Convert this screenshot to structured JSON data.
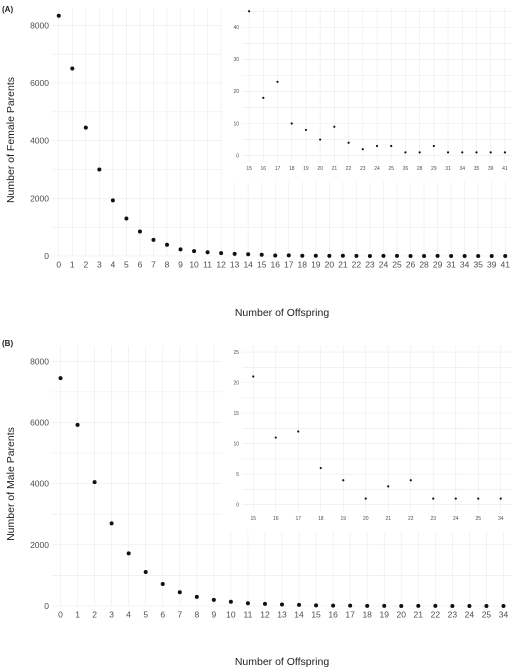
{
  "chart_data": [
    {
      "panel_label": "(A)",
      "type": "scatter",
      "xlabel": "Number of Offspring",
      "ylabel": "Number of Female Parents",
      "categories": [
        "0",
        "1",
        "2",
        "3",
        "4",
        "5",
        "6",
        "7",
        "8",
        "9",
        "10",
        "11",
        "12",
        "13",
        "14",
        "15",
        "16",
        "17",
        "18",
        "19",
        "20",
        "21",
        "22",
        "23",
        "24",
        "25",
        "26",
        "28",
        "29",
        "31",
        "34",
        "35",
        "39",
        "41"
      ],
      "values": [
        8330,
        6500,
        4450,
        3000,
        1930,
        1300,
        850,
        560,
        390,
        230,
        170,
        130,
        100,
        75,
        60,
        45,
        18,
        23,
        10,
        8,
        5,
        9,
        4,
        2,
        3,
        3,
        1,
        1,
        3,
        1,
        1,
        1,
        1,
        1
      ],
      "yticks": [
        0,
        2000,
        4000,
        6000,
        8000
      ],
      "ylim": [
        0,
        8600
      ],
      "grid": true,
      "inset": {
        "categories": [
          "15",
          "16",
          "17",
          "18",
          "19",
          "20",
          "21",
          "22",
          "23",
          "24",
          "25",
          "26",
          "28",
          "29",
          "31",
          "34",
          "35",
          "39",
          "41"
        ],
        "values": [
          45,
          18,
          23,
          10,
          8,
          5,
          9,
          4,
          2,
          3,
          3,
          1,
          1,
          3,
          1,
          1,
          1,
          1,
          1
        ],
        "yticks": [
          0,
          10,
          20,
          30,
          40
        ],
        "ylim": [
          -2,
          46
        ],
        "grid": true
      }
    },
    {
      "panel_label": "(B)",
      "type": "scatter",
      "xlabel": "Number of Offspring",
      "ylabel": "Number of Male Parents",
      "categories": [
        "0",
        "1",
        "2",
        "3",
        "4",
        "5",
        "6",
        "7",
        "8",
        "9",
        "10",
        "11",
        "12",
        "13",
        "14",
        "15",
        "16",
        "17",
        "18",
        "19",
        "20",
        "21",
        "22",
        "23",
        "24",
        "25",
        "34"
      ],
      "values": [
        7450,
        5920,
        4050,
        2700,
        1720,
        1110,
        720,
        450,
        300,
        200,
        140,
        90,
        70,
        50,
        35,
        21,
        11,
        12,
        6,
        4,
        1,
        3,
        4,
        1,
        1,
        1,
        1
      ],
      "yticks": [
        0,
        2000,
        4000,
        6000,
        8000
      ],
      "ylim": [
        0,
        8500
      ],
      "grid": true,
      "inset": {
        "categories": [
          "15",
          "16",
          "17",
          "18",
          "19",
          "20",
          "21",
          "22",
          "23",
          "24",
          "25",
          "34"
        ],
        "values": [
          21,
          11,
          12,
          6,
          4,
          1,
          3,
          4,
          1,
          1,
          1,
          1
        ],
        "yticks": [
          0,
          5,
          10,
          15,
          20,
          25
        ],
        "ylim": [
          -1.2,
          26
        ],
        "grid": true
      }
    }
  ]
}
